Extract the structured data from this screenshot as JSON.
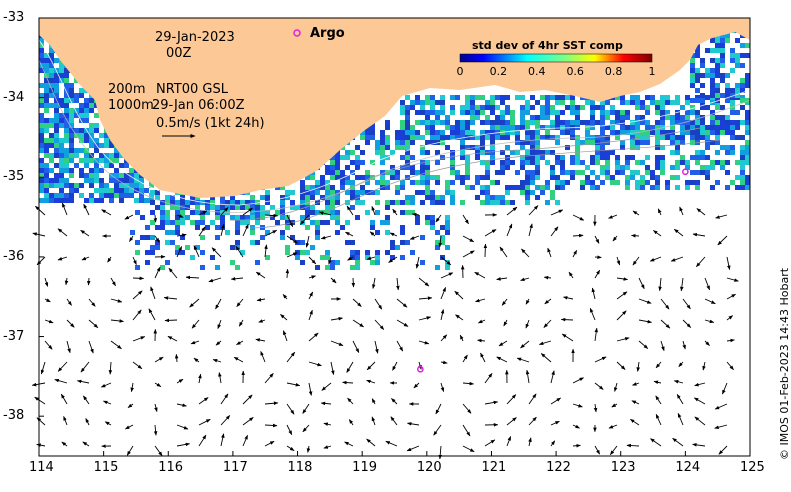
{
  "map": {
    "date": "29-Jan-2023",
    "hour": "00Z",
    "contour_label": "200m",
    "contour_label_2": "1000m",
    "current_source": "NRT00 GSL",
    "current_time": "29-Jan 06:00Z",
    "speed_reference": "0.5m/s (1kt 24h)",
    "argo_label": "Argo",
    "colorbar_title": "std dev of 4hr SST comp",
    "colorbar_ticks": [
      "0",
      "0.2",
      "0.4",
      "0.6",
      "0.8",
      "1"
    ],
    "x_ticks": [
      "114",
      "115",
      "116",
      "117",
      "118",
      "119",
      "120",
      "121",
      "122",
      "123",
      "124",
      "125"
    ],
    "y_ticks": [
      "-33",
      "-34",
      "-35",
      "-36",
      "-37",
      "-38"
    ],
    "lon_range": [
      114,
      125
    ],
    "lat_range": [
      -38.5,
      -33
    ],
    "land_color": "#fcc896",
    "argo_color": "#e020e0",
    "argo_floats": [
      {
        "lon": 124.0,
        "lat": -34.93
      },
      {
        "lon": 119.9,
        "lat": -37.41
      }
    ],
    "copyright": "© IMOS 01-Feb-2023 14:43 Hobart"
  }
}
